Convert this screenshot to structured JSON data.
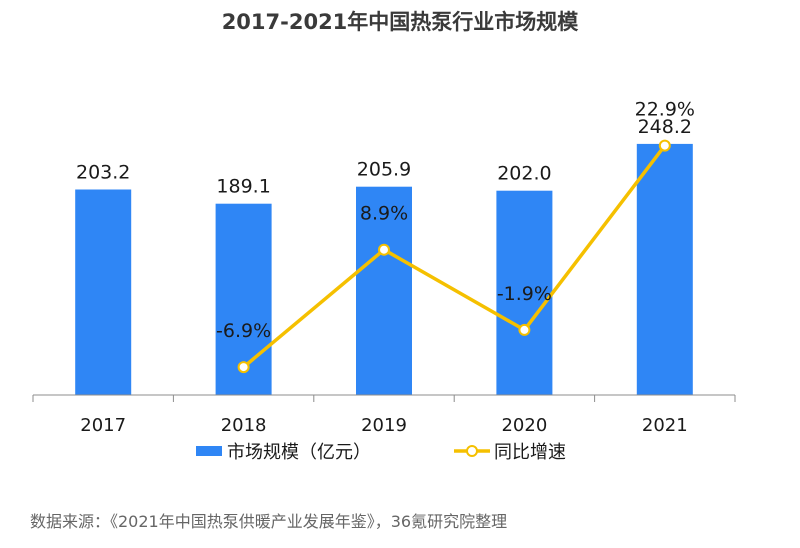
{
  "chart_data": {
    "type": "bar",
    "title": "2017-2021年中国热泵行业市场规模",
    "categories": [
      "2017",
      "2018",
      "2019",
      "2020",
      "2021"
    ],
    "series": [
      {
        "name": "市场规模（亿元）",
        "type": "bar",
        "axis": "left",
        "color": "#2f86f5",
        "values": [
          203.2,
          189.1,
          205.9,
          202.0,
          248.2
        ],
        "labels": [
          "203.2",
          "189.1",
          "205.9",
          "202.0",
          "248.2"
        ]
      },
      {
        "name": "同比增速",
        "type": "line",
        "axis": "right",
        "color": "#f5c000",
        "values": [
          null,
          -6.9,
          8.9,
          -1.9,
          22.9
        ],
        "labels": [
          "",
          "-6.9%",
          "8.9%",
          "-1.9%",
          "22.9%"
        ]
      }
    ],
    "ylim": [
      0,
      260
    ],
    "y2lim": [
      -12,
      25
    ],
    "grid": false,
    "legend_position": "bottom",
    "source": "数据来源：《2021年中国热泵供暖产业发展年鉴》，36氪研究院整理"
  }
}
